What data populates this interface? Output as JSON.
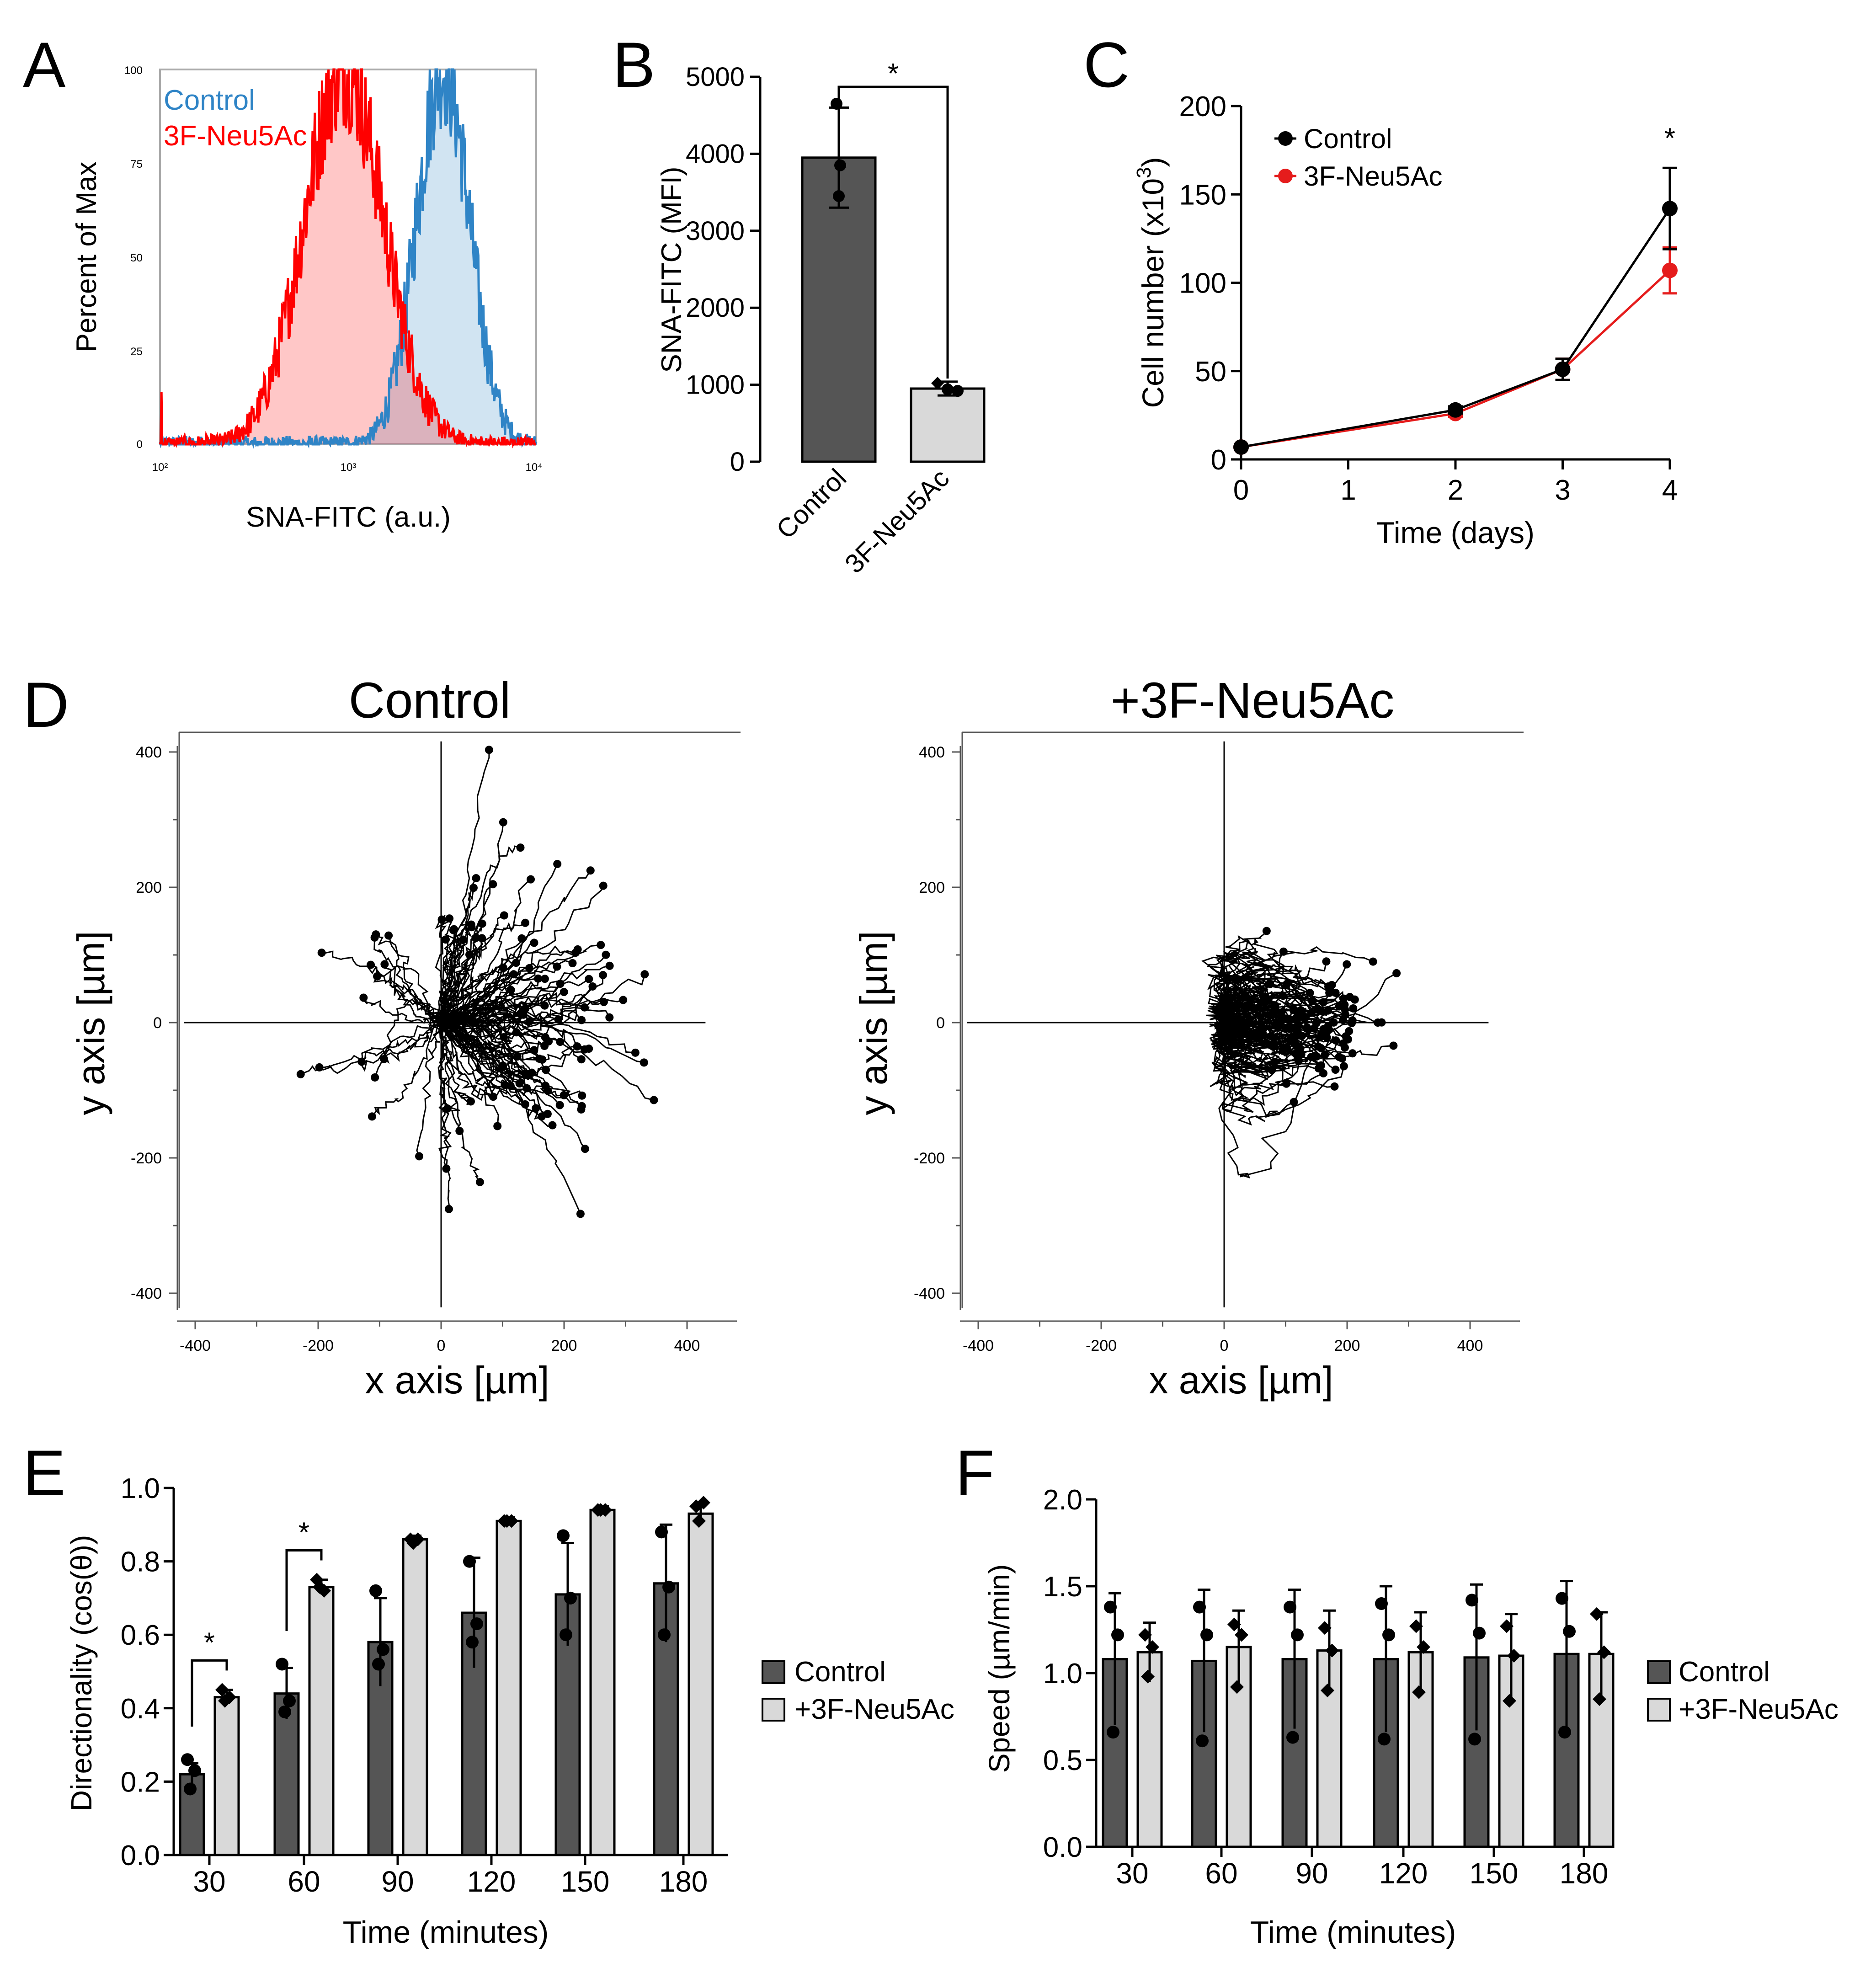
{
  "panel_letters": [
    "A",
    "B",
    "C",
    "D",
    "E",
    "F"
  ],
  "colors": {
    "control_hist": "#2f84c6",
    "treated_hist": "#ff0000",
    "bar_dark": "#555555",
    "bar_light": "#d9d9d9",
    "line_control": "#000000",
    "line_treated": "#e51c1c"
  },
  "chart_data": [
    {
      "panel": "A",
      "type": "area",
      "xlabel": "SNA-FITC (a.u.)",
      "ylabel": "Percent of Max",
      "xscale": "log",
      "xlim": [
        100,
        10000
      ],
      "ylim": [
        0,
        100
      ],
      "x_ticks": [
        "10²",
        "10³",
        "10⁴"
      ],
      "y_ticks": [
        "0",
        "25",
        "50",
        "75",
        "100"
      ],
      "legend": [
        "Control",
        "3F-Neu5Ac"
      ],
      "series": [
        {
          "name": "Control",
          "peak_x": 3200,
          "peak_y": 100,
          "log_sigma": 0.14
        },
        {
          "name": "3F-Neu5Ac",
          "peak_x": 950,
          "peak_y": 100,
          "log_sigma": 0.21
        }
      ]
    },
    {
      "panel": "B",
      "type": "bar",
      "ylabel": "SNA-FITC (MFI)",
      "ylim": [
        0,
        5000
      ],
      "y_ticks": [
        0,
        1000,
        2000,
        3000,
        4000,
        5000
      ],
      "categories": [
        "Control",
        "3F-Neu5Ac"
      ],
      "values": [
        3950,
        950
      ],
      "errors": [
        650,
        90
      ],
      "points": [
        [
          4650,
          3850,
          3450
        ],
        [
          1020,
          940,
          920
        ]
      ],
      "significance": "*"
    },
    {
      "panel": "C",
      "type": "line",
      "xlabel": "Time (days)",
      "ylabel_main": "Cell number (x10",
      "ylabel_sup": "3",
      "ylabel_close": ")",
      "xlim": [
        0,
        4
      ],
      "ylim": [
        0,
        200
      ],
      "x_ticks": [
        0,
        1,
        2,
        3,
        4
      ],
      "y_ticks": [
        0,
        50,
        100,
        150,
        200
      ],
      "x": [
        0,
        2,
        3,
        4
      ],
      "series": [
        {
          "name": "Control",
          "values": [
            7,
            28,
            51,
            142
          ],
          "errors": [
            1,
            2,
            6,
            23
          ]
        },
        {
          "name": "3F-Neu5Ac",
          "values": [
            7,
            26,
            51,
            107
          ],
          "errors": [
            1,
            2,
            6,
            13
          ]
        }
      ],
      "significance": "*"
    },
    {
      "panel": "D",
      "type": "scatter",
      "plots": [
        {
          "title": "Control",
          "xlabel": "x axis [µm]",
          "ylabel": "y axis [µm]",
          "xlim": [
            -400,
            400
          ],
          "ylim": [
            -400,
            400
          ],
          "ticks": [
            -400,
            -200,
            0,
            200,
            400
          ],
          "n_tracks": 120
        },
        {
          "title": "+3F-Neu5Ac",
          "xlabel": "x axis [µm]",
          "ylabel": "y axis [µm]",
          "xlim": [
            -400,
            400
          ],
          "ylim": [
            -400,
            400
          ],
          "ticks": [
            -400,
            -200,
            0,
            200,
            400
          ],
          "n_tracks": 110
        }
      ]
    },
    {
      "panel": "E",
      "type": "bar",
      "xlabel": "Time (minutes)",
      "ylabel": "Directionality (cos(θ))",
      "ylim": [
        0,
        1.0
      ],
      "y_ticks": [
        "0.0",
        "0.2",
        "0.4",
        "0.6",
        "0.8",
        "1.0"
      ],
      "categories": [
        "30",
        "60",
        "90",
        "120",
        "150",
        "180"
      ],
      "series": [
        {
          "name": "Control",
          "values": [
            0.22,
            0.44,
            0.58,
            0.66,
            0.71,
            0.74
          ],
          "errors": [
            0.03,
            0.07,
            0.12,
            0.15,
            0.14,
            0.16
          ],
          "points": [
            [
              0.26,
              0.23,
              0.18
            ],
            [
              0.52,
              0.42,
              0.39
            ],
            [
              0.72,
              0.56,
              0.52
            ],
            [
              0.8,
              0.63,
              0.58
            ],
            [
              0.87,
              0.7,
              0.6
            ],
            [
              0.88,
              0.73,
              0.6
            ]
          ]
        },
        {
          "name": "+3F-Neu5Ac",
          "values": [
            0.43,
            0.73,
            0.86,
            0.91,
            0.94,
            0.93
          ],
          "errors": [
            0.02,
            0.02,
            0.01,
            0.01,
            0.01,
            0.03
          ],
          "points": [
            [
              0.45,
              0.43,
              0.42
            ],
            [
              0.75,
              0.72,
              0.73
            ],
            [
              0.86,
              0.86,
              0.85
            ],
            [
              0.91,
              0.91,
              0.91
            ],
            [
              0.94,
              0.94,
              0.94
            ],
            [
              0.95,
              0.96,
              0.91
            ]
          ]
        }
      ],
      "legend": [
        "Control",
        "+3F-Neu5Ac"
      ],
      "significance": [
        {
          "category": "30",
          "label": "*"
        },
        {
          "category": "60",
          "label": "*"
        }
      ]
    },
    {
      "panel": "F",
      "type": "bar",
      "xlabel": "Time (minutes)",
      "ylabel": "Speed (µm/min)",
      "ylim": [
        0,
        2.0
      ],
      "y_ticks": [
        "0.0",
        "0.5",
        "1.0",
        "1.5",
        "2.0"
      ],
      "categories": [
        "30",
        "60",
        "90",
        "120",
        "150",
        "180"
      ],
      "series": [
        {
          "name": "Control",
          "values": [
            1.08,
            1.07,
            1.08,
            1.08,
            1.09,
            1.11
          ],
          "errors": [
            0.38,
            0.41,
            0.4,
            0.42,
            0.42,
            0.42
          ],
          "points": [
            [
              1.38,
              1.22,
              0.66
            ],
            [
              1.38,
              1.22,
              0.61
            ],
            [
              1.38,
              1.22,
              0.63
            ],
            [
              1.4,
              1.22,
              0.62
            ],
            [
              1.42,
              1.23,
              0.62
            ],
            [
              1.43,
              1.24,
              0.66
            ]
          ]
        },
        {
          "name": "+3F-Neu5Ac",
          "values": [
            1.12,
            1.15,
            1.13,
            1.12,
            1.1,
            1.11
          ],
          "errors": [
            0.17,
            0.21,
            0.23,
            0.23,
            0.24,
            0.24
          ],
          "points": [
            [
              1.22,
              1.15,
              0.98
            ],
            [
              1.28,
              1.22,
              0.92
            ],
            [
              1.26,
              1.13,
              0.9
            ],
            [
              1.27,
              1.15,
              0.89
            ],
            [
              1.27,
              1.1,
              0.84
            ],
            [
              1.34,
              1.12,
              0.85
            ]
          ]
        }
      ],
      "legend": [
        "Control",
        "+3F-Neu5Ac"
      ]
    }
  ]
}
